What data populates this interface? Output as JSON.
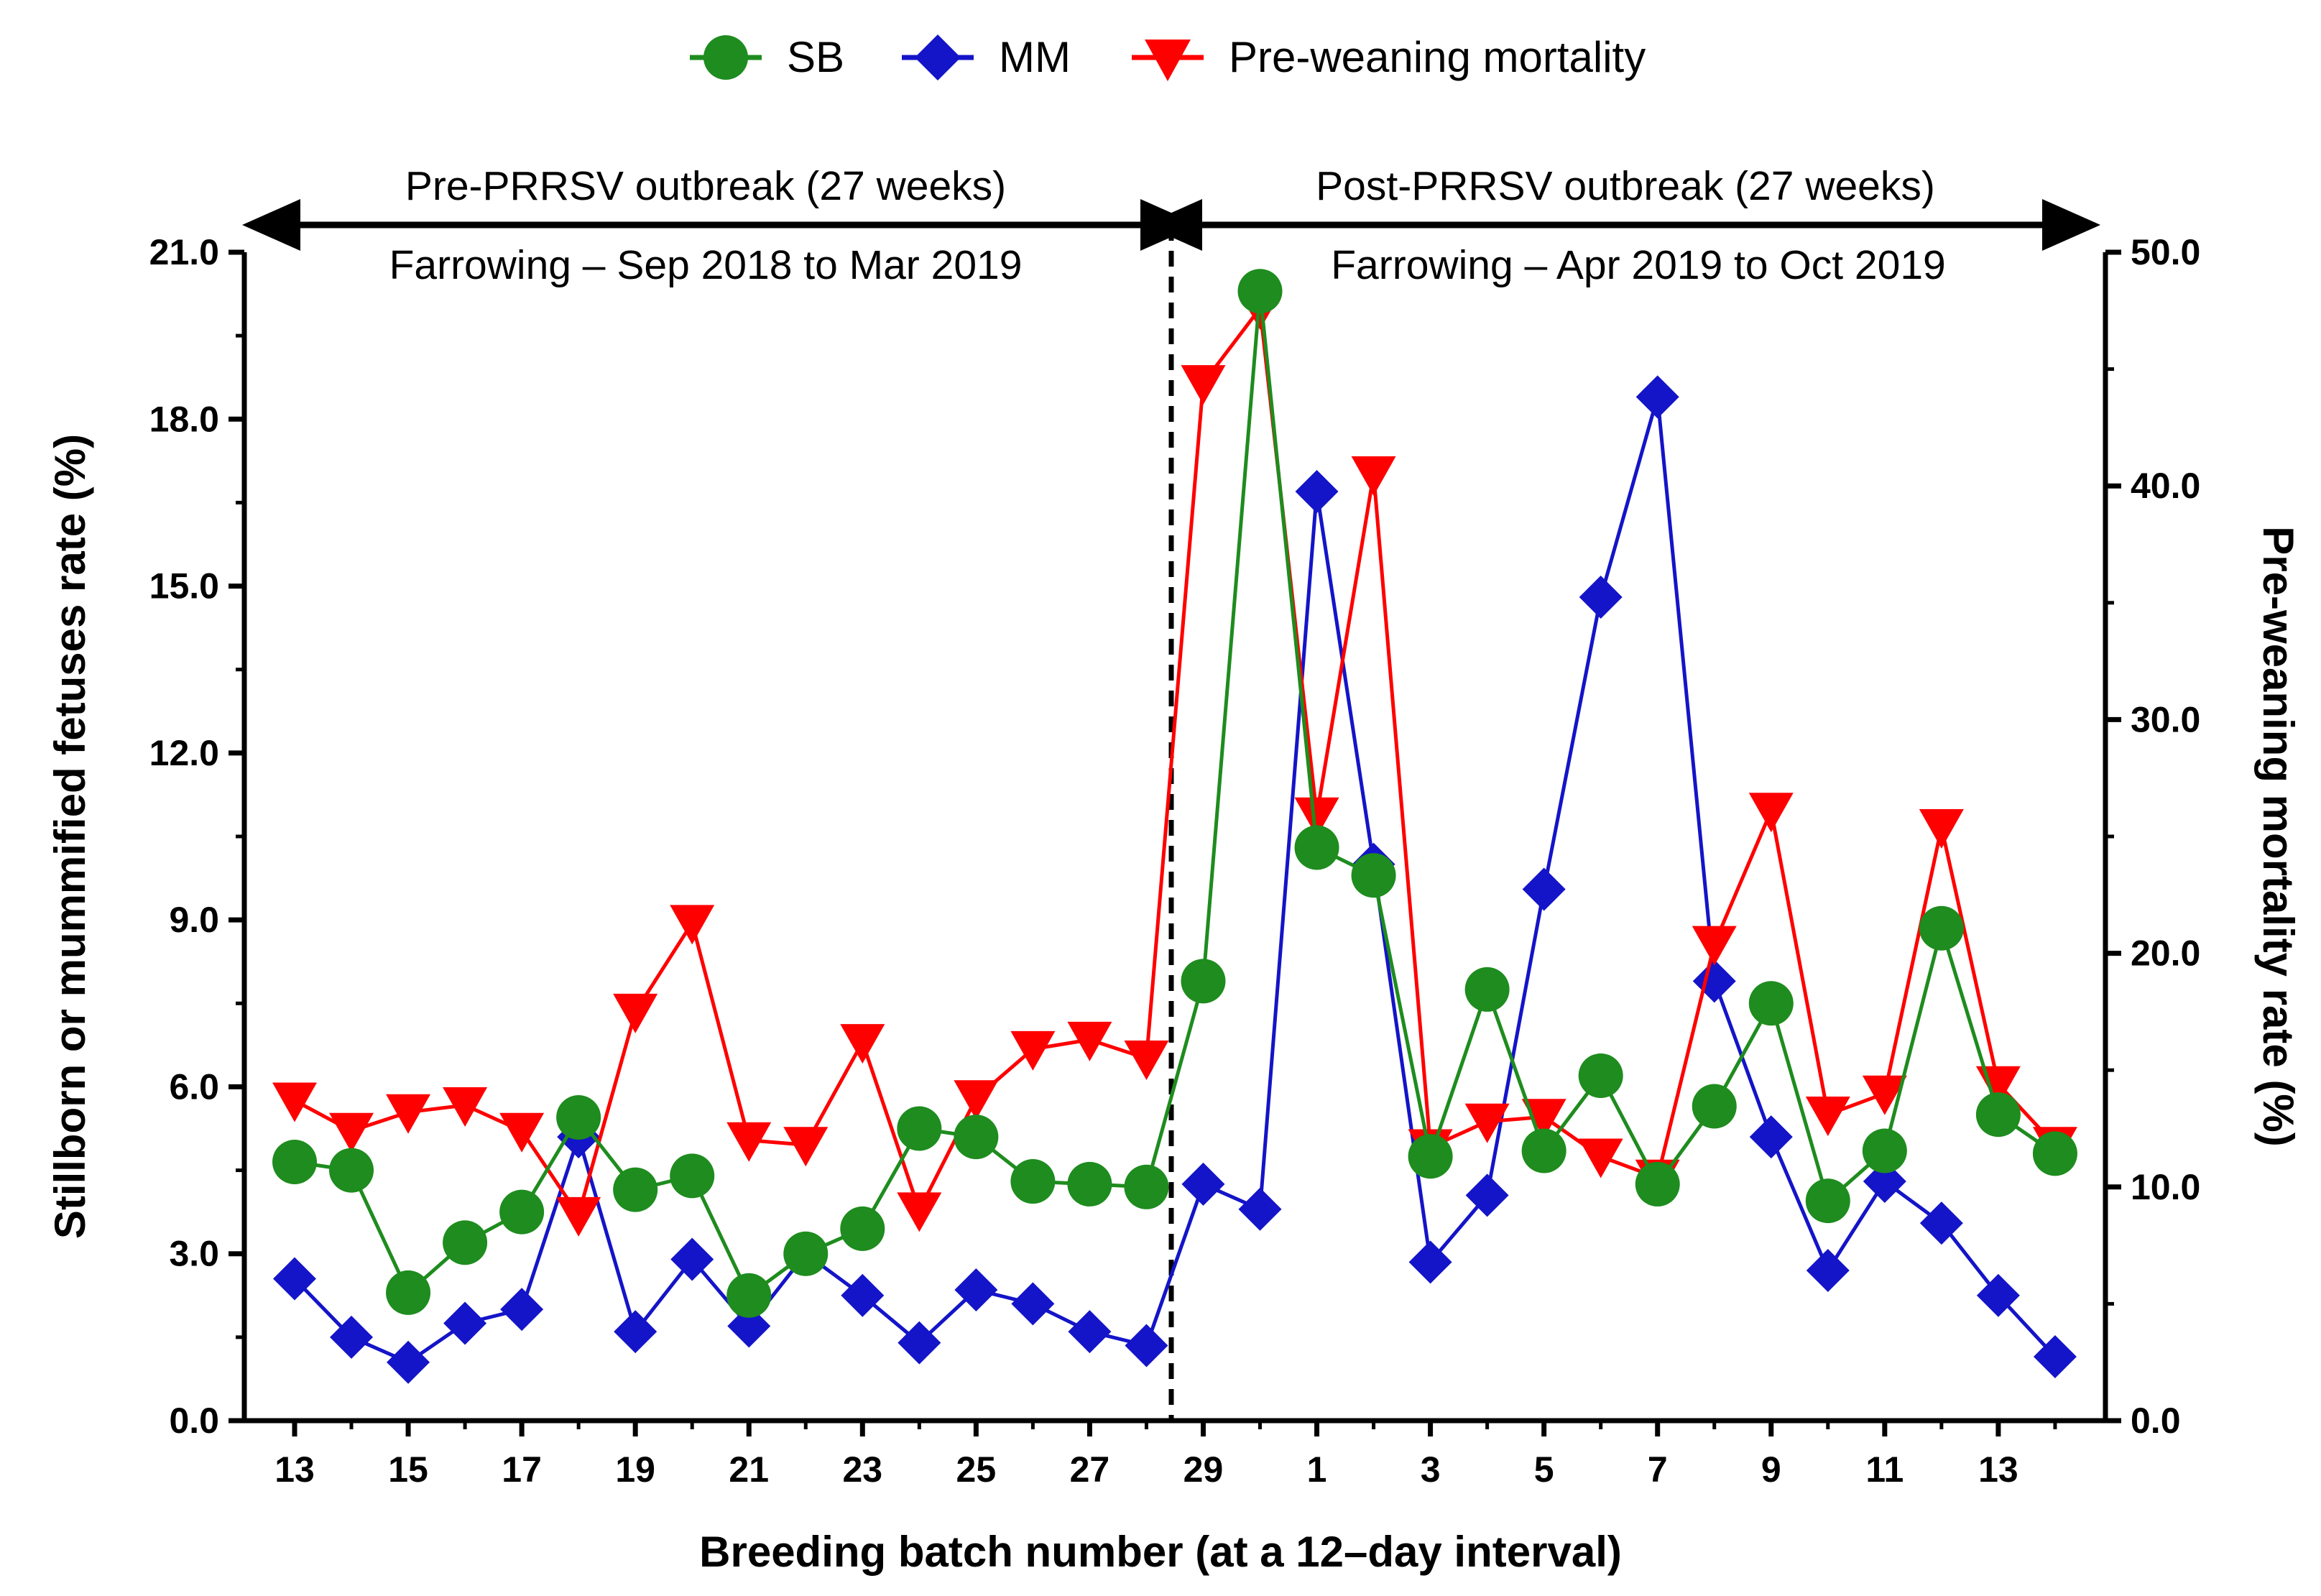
{
  "chart_data": {
    "type": "line",
    "dual_axis": true,
    "xlabel": "Breeding batch number (at a 12–day interval)",
    "ylabel_left": "Stillborn or mummified fetuses rate (%)",
    "ylabel_right": "Pre-weaning mortality rate (%)",
    "ylim_left": [
      0,
      21
    ],
    "ylim_right": [
      0,
      50
    ],
    "yticks_left": [
      "0.0",
      "3.0",
      "6.0",
      "9.0",
      "12.0",
      "15.0",
      "18.0",
      "21.0"
    ],
    "yticks_right": [
      "0.0",
      "10.0",
      "20.0",
      "30.0",
      "40.0",
      "50.0"
    ],
    "x": [
      13,
      14,
      15,
      16,
      17,
      18,
      19,
      20,
      21,
      22,
      23,
      24,
      25,
      26,
      27,
      28,
      29,
      30,
      1,
      2,
      3,
      4,
      5,
      6,
      7,
      8,
      9,
      10,
      11,
      12,
      13,
      14
    ],
    "x_tick_labels": [
      "13",
      "15",
      "17",
      "19",
      "21",
      "23",
      "25",
      "27",
      "29",
      "1",
      "3",
      "5",
      "7",
      "9",
      "11",
      "13"
    ],
    "series": [
      {
        "name": "SB",
        "axis": "left",
        "color": "#1e8c1e",
        "marker": "circle",
        "values": [
          4.65,
          4.5,
          2.3,
          3.2,
          3.75,
          5.45,
          4.15,
          4.4,
          2.25,
          3.0,
          3.45,
          5.25,
          5.1,
          4.3,
          4.25,
          4.2,
          7.9,
          20.3,
          10.3,
          9.8,
          4.75,
          7.75,
          4.85,
          6.2,
          4.25,
          5.65,
          7.5,
          3.95,
          4.85,
          8.85,
          5.5,
          4.8
        ]
      },
      {
        "name": "MM",
        "axis": "left",
        "color": "#1414c8",
        "marker": "diamond",
        "values": [
          2.55,
          1.5,
          1.05,
          1.75,
          2.0,
          5.1,
          1.6,
          2.9,
          1.7,
          3.0,
          2.25,
          1.4,
          2.35,
          2.1,
          1.6,
          1.35,
          4.25,
          3.8,
          16.7,
          10.0,
          2.85,
          4.05,
          9.55,
          14.8,
          18.4,
          7.9,
          5.1,
          2.7,
          4.3,
          3.55,
          2.25,
          1.15
        ]
      },
      {
        "name": "Pre-weaning mortality",
        "axis": "right",
        "color": "#ff0000",
        "marker": "triangle-down",
        "values": [
          13.7,
          12.4,
          13.2,
          13.5,
          12.4,
          8.8,
          17.5,
          21.3,
          12.0,
          11.8,
          16.2,
          9.0,
          13.8,
          15.9,
          16.3,
          15.5,
          44.4,
          47.6,
          25.9,
          40.5,
          11.7,
          12.8,
          13.0,
          11.3,
          10.4,
          20.4,
          26.1,
          13.1,
          14.0,
          25.4,
          14.4,
          11.8
        ]
      }
    ],
    "legend_position": "top-center",
    "annotations": {
      "pre_title": "Pre-PRRSV outbreak (27 weeks)",
      "pre_sub": "Farrowing – Sep 2018 to Mar 2019",
      "post_title": "Post-PRRSV outbreak (27 weeks)",
      "post_sub": "Farrowing – Apr 2019 to Oct 2019",
      "divider_after_batch_index": 15
    }
  }
}
